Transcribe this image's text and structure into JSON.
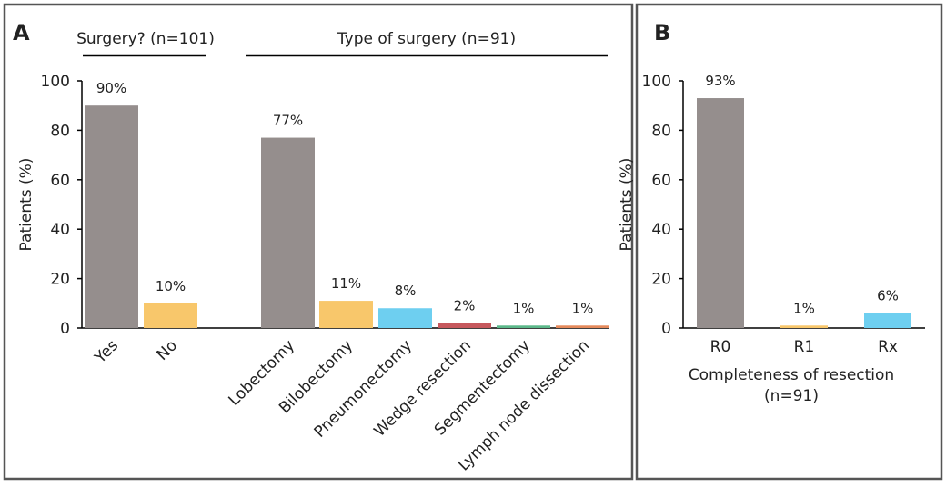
{
  "panels": {
    "a": {
      "letter": "A"
    },
    "b": {
      "letter": "B"
    }
  },
  "chart_data": [
    {
      "type": "bar",
      "panel": "A",
      "ylabel": "Patients (%)",
      "ylim": [
        0,
        100
      ],
      "yticks": [
        0,
        20,
        40,
        60,
        80,
        100
      ],
      "groups": [
        {
          "header": "Surgery? (n=101)",
          "categories": [
            "Yes",
            "No"
          ],
          "values": [
            90,
            10
          ],
          "labels": [
            "90%",
            "10%"
          ],
          "colors": [
            "#958e8d",
            "#f8c76b"
          ]
        },
        {
          "header": "Type of surgery (n=91)",
          "categories": [
            "Lobectomy",
            "Bilobectomy",
            "Pneumonectomy",
            "Wedge resection",
            "Segmentectomy",
            "Lymph node dissection"
          ],
          "values": [
            77,
            11,
            8,
            2,
            1,
            1
          ],
          "labels": [
            "77%",
            "11%",
            "8%",
            "2%",
            "1%",
            "1%"
          ],
          "colors": [
            "#958e8d",
            "#f8c76b",
            "#6ecff0",
            "#c6585d",
            "#5cb88a",
            "#e58a5c"
          ]
        }
      ],
      "legend": "none",
      "grid": false
    },
    {
      "type": "bar",
      "panel": "B",
      "ylabel": "Patients (%)",
      "xlabel": "Completeness of resection",
      "xlabel2": "(n=91)",
      "ylim": [
        0,
        100
      ],
      "yticks": [
        0,
        20,
        40,
        60,
        80,
        100
      ],
      "categories": [
        "R0",
        "R1",
        "Rx"
      ],
      "values": [
        93,
        1,
        6
      ],
      "labels": [
        "93%",
        "1%",
        "6%"
      ],
      "colors": [
        "#958e8d",
        "#f8c76b",
        "#6ecff0"
      ],
      "legend": "none",
      "grid": false
    }
  ]
}
